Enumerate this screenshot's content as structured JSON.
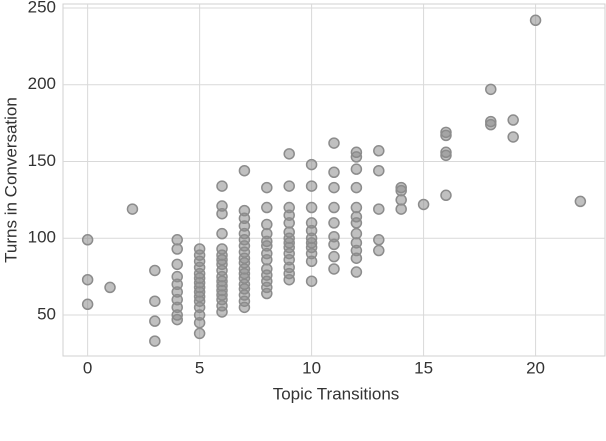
{
  "chart_data": {
    "type": "scatter",
    "x_label": "Topic Transitions",
    "y_label": "Turns in Conversation",
    "color": "#8c8c8c",
    "grid": true,
    "xlim": [
      -1.1,
      23.1
    ],
    "ylim": [
      23.3,
      252.6
    ],
    "xticks": [
      0,
      5,
      10,
      15,
      20
    ],
    "yticks": [
      50,
      100,
      150,
      200,
      250
    ],
    "x": [
      0,
      0,
      0,
      1,
      2,
      3,
      3,
      3,
      3,
      4,
      4,
      4,
      4,
      4,
      4,
      4,
      4,
      4,
      4,
      5,
      5,
      5,
      5,
      5,
      5,
      5,
      5,
      5,
      5,
      5,
      5,
      5,
      5,
      5,
      6,
      6,
      6,
      6,
      6,
      6,
      6,
      6,
      6,
      6,
      6,
      6,
      6,
      6,
      6,
      6,
      6,
      7,
      7,
      7,
      7,
      7,
      7,
      7,
      7,
      7,
      7,
      7,
      7,
      7,
      7,
      7,
      7,
      7,
      7,
      8,
      8,
      8,
      8,
      8,
      8,
      8,
      8,
      8,
      8,
      8,
      8,
      8,
      9,
      9,
      9,
      9,
      9,
      9,
      9,
      9,
      9,
      9,
      9,
      9,
      9,
      9,
      10,
      10,
      10,
      10,
      10,
      10,
      10,
      10,
      10,
      10,
      10,
      11,
      11,
      11,
      11,
      11,
      11,
      11,
      11,
      11,
      12,
      12,
      12,
      12,
      12,
      12,
      12,
      12,
      12,
      12,
      12,
      12,
      13,
      13,
      13,
      13,
      13,
      14,
      14,
      14,
      14,
      15,
      16,
      16,
      16,
      16,
      16,
      18,
      18,
      18,
      19,
      19,
      20,
      22
    ],
    "y": [
      99,
      73,
      57,
      68,
      119,
      79,
      59,
      46,
      33,
      99,
      93,
      83,
      75,
      70,
      65,
      60,
      55,
      50,
      47,
      93,
      89,
      85,
      81,
      77,
      74,
      71,
      68,
      65,
      62,
      59,
      55,
      50,
      45,
      38,
      134,
      121,
      116,
      103,
      93,
      89,
      86,
      83,
      79,
      75,
      72,
      69,
      66,
      63,
      60,
      56,
      52,
      144,
      118,
      113,
      108,
      103,
      99,
      95,
      91,
      87,
      84,
      80,
      77,
      74,
      70,
      67,
      63,
      59,
      55,
      133,
      120,
      109,
      103,
      98,
      95,
      90,
      86,
      80,
      76,
      72,
      68,
      64,
      155,
      134,
      120,
      115,
      110,
      104,
      100,
      97,
      94,
      90,
      86,
      81,
      77,
      73,
      148,
      134,
      120,
      110,
      105,
      100,
      97,
      94,
      90,
      85,
      72,
      162,
      143,
      133,
      120,
      110,
      101,
      96,
      88,
      80,
      156,
      153,
      145,
      133,
      120,
      114,
      110,
      103,
      97,
      92,
      87,
      78,
      157,
      144,
      119,
      99,
      92,
      133,
      131,
      125,
      119,
      122,
      169,
      167,
      156,
      154,
      128,
      197,
      176,
      174,
      177,
      166,
      242,
      124
    ]
  }
}
